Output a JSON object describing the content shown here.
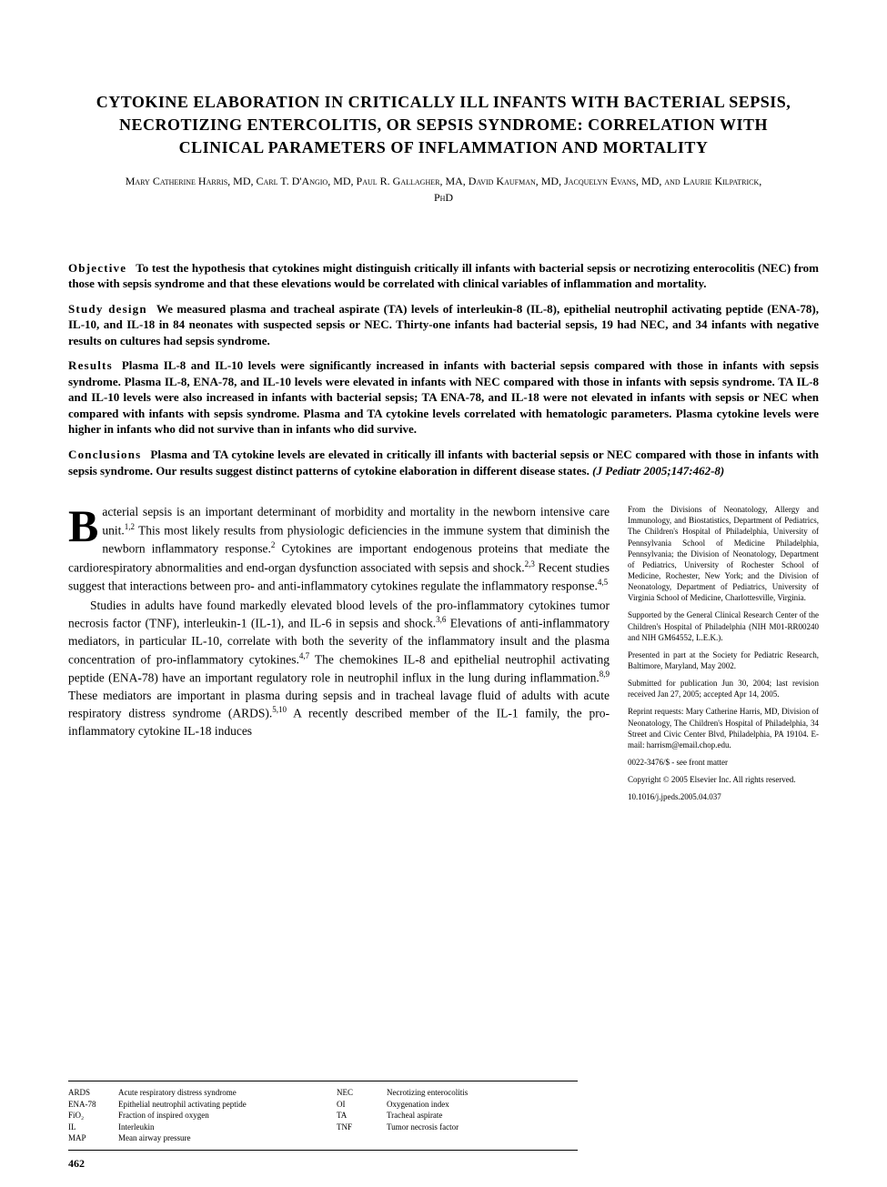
{
  "title": "CYTOKINE ELABORATION IN CRITICALLY ILL INFANTS WITH BACTERIAL SEPSIS, NECROTIZING ENTERCOLITIS, OR SEPSIS SYNDROME: CORRELATION WITH CLINICAL PARAMETERS OF INFLAMMATION AND MORTALITY",
  "authors": "Mary Catherine Harris, MD, Carl T. D'Angio, MD, Paul R. Gallagher, MA, David Kaufman, MD, Jacquelyn Evans, MD, and Laurie Kilpatrick, PhD",
  "abstract": {
    "objective": {
      "heading": "Objective",
      "text": "To test the hypothesis that cytokines might distinguish critically ill infants with bacterial sepsis or necrotizing enterocolitis (NEC) from those with sepsis syndrome and that these elevations would be correlated with clinical variables of inflammation and mortality."
    },
    "study_design": {
      "heading": "Study design",
      "text": "We measured plasma and tracheal aspirate (TA) levels of interleukin-8 (IL-8), epithelial neutrophil activating peptide (ENA-78), IL-10, and IL-18 in 84 neonates with suspected sepsis or NEC. Thirty-one infants had bacterial sepsis, 19 had NEC, and 34 infants with negative results on cultures had sepsis syndrome."
    },
    "results": {
      "heading": "Results",
      "text": "Plasma IL-8 and IL-10 levels were significantly increased in infants with bacterial sepsis compared with those in infants with sepsis syndrome. Plasma IL-8, ENA-78, and IL-10 levels were elevated in infants with NEC compared with those in infants with sepsis syndrome. TA IL-8 and IL-10 levels were also increased in infants with bacterial sepsis; TA ENA-78, and IL-18 were not elevated in infants with sepsis or NEC when compared with infants with sepsis syndrome. Plasma and TA cytokine levels correlated with hematologic parameters. Plasma cytokine levels were higher in infants who did not survive than in infants who did survive."
    },
    "conclusions": {
      "heading": "Conclusions",
      "text": "Plasma and TA cytokine levels are elevated in critically ill infants with bacterial sepsis or NEC compared with those in infants with sepsis syndrome. Our results suggest distinct patterns of cytokine elaboration in different disease states."
    },
    "citation": "(J Pediatr 2005;147:462-8)"
  },
  "body": {
    "dropcap": "B",
    "para1_rest": "acterial sepsis is an important determinant of morbidity and mortality in the newborn intensive care unit.",
    "para1_sup1": "1,2",
    "para1_cont1": " This most likely results from physiologic deficiencies in the immune system that diminish the newborn inflammatory response.",
    "para1_sup2": "2",
    "para1_cont2": " Cytokines are important endogenous proteins that mediate the cardiorespiratory abnormalities and end-organ dysfunction associated with sepsis and shock.",
    "para1_sup3": "2,3",
    "para1_cont3": " Recent studies suggest that interactions between pro- and anti-inflammatory cytokines regulate the inflammatory response.",
    "para1_sup4": "4,5",
    "para2_start": "Studies in adults have found markedly elevated blood levels of the pro-inflammatory cytokines tumor necrosis factor (TNF), interleukin-1 (IL-1), and IL-6 in sepsis and shock.",
    "para2_sup1": "3,6",
    "para2_cont1": " Elevations of anti-inflammatory mediators, in particular IL-10, correlate with both the severity of the inflammatory insult and the plasma concentration of pro-inflammatory cytokines.",
    "para2_sup2": "4,7",
    "para2_cont2": " The chemokines IL-8 and epithelial neutrophil activating peptide (ENA-78) have an important regulatory role in neutrophil influx in the lung during inflammation.",
    "para2_sup3": "8,9",
    "para2_cont3": " These mediators are important in plasma during sepsis and in tracheal lavage fluid of adults with acute respiratory distress syndrome (ARDS).",
    "para2_sup4": "5,10",
    "para2_cont4": " A recently described member of the IL-1 family, the pro-inflammatory cytokine IL-18 induces"
  },
  "sidebar": {
    "affiliations": "From the Divisions of Neonatology, Allergy and Immunology, and Biostatistics, Department of Pediatrics, The Children's Hospital of Philadelphia, University of Pennsylvania School of Medicine Philadelphia, Pennsylvania; the Division of Neonatology, Department of Pediatrics, University of Rochester School of Medicine, Rochester, New York; and the Division of Neonatology, Department of Pediatrics, University of Virginia School of Medicine, Charlottesville, Virginia.",
    "supported": "Supported by the General Clinical Research Center of the Children's Hospital of Philadelphia (NIH M01-RR00240 and NIH GM64552, L.E.K.).",
    "presented": "Presented in part at the Society for Pediatric Research, Baltimore, Maryland, May 2002.",
    "submitted": "Submitted for publication Jun 30, 2004; last revision received Jan 27, 2005; accepted Apr 14, 2005.",
    "reprint": "Reprint requests: Mary Catherine Harris, MD, Division of Neonatology, The Children's Hospital of Philadelphia, 34 Street and Civic Center Blvd, Philadelphia, PA 19104. E-mail: harrism@email.chop.edu.",
    "issn": "0022-3476/$ - see front matter",
    "copyright": "Copyright © 2005 Elsevier Inc. All rights reserved.",
    "doi": "10.1016/j.jpeds.2005.04.037"
  },
  "abbreviations": {
    "col1": [
      {
        "key": "ARDS",
        "val": "Acute respiratory distress syndrome"
      },
      {
        "key": "ENA-78",
        "val": "Epithelial neutrophil activating peptide"
      },
      {
        "key": "FiO₂",
        "val": "Fraction of inspired oxygen"
      },
      {
        "key": "IL",
        "val": "Interleukin"
      },
      {
        "key": "MAP",
        "val": "Mean airway pressure"
      }
    ],
    "col2": [
      {
        "key": "NEC",
        "val": "Necrotizing enterocolitis"
      },
      {
        "key": "OI",
        "val": "Oxygenation index"
      },
      {
        "key": "TA",
        "val": "Tracheal aspirate"
      },
      {
        "key": "TNF",
        "val": "Tumor necrosis factor"
      }
    ]
  },
  "page_number": "462"
}
